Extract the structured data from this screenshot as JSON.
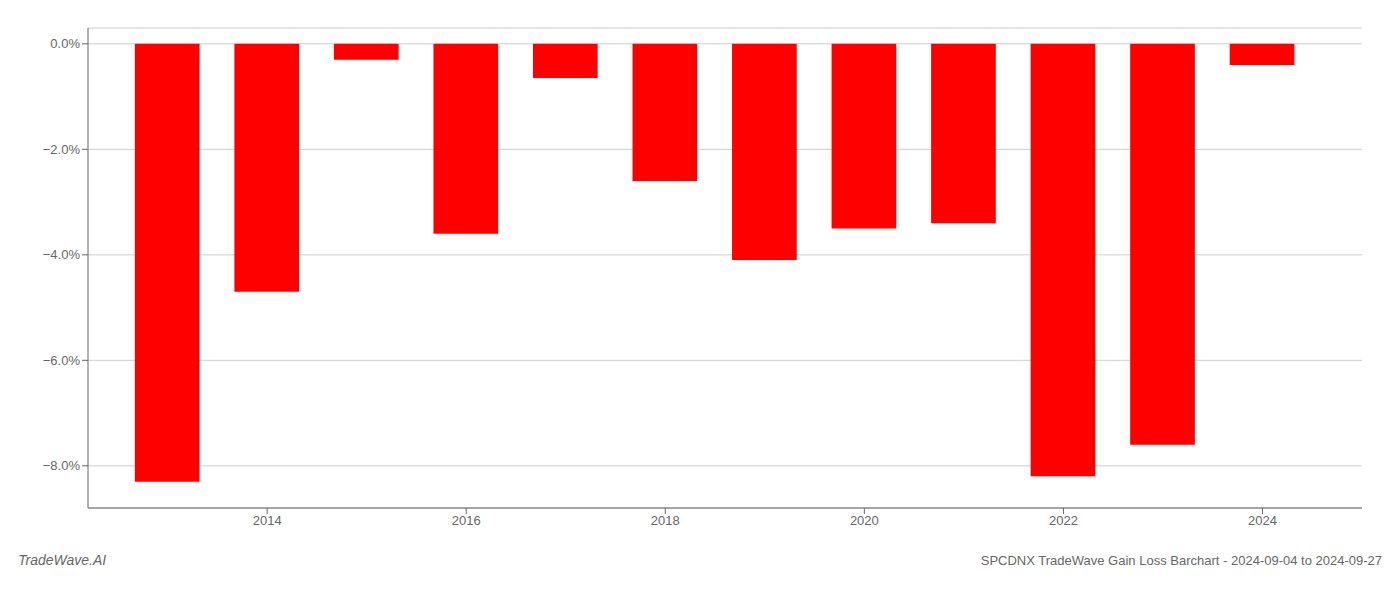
{
  "chart_data": {
    "type": "bar",
    "title": "SPCDNX TradeWave Gain Loss Barchart - 2024-09-04 to 2024-09-27",
    "annotations": [
      "TradeWave.AI"
    ],
    "x": [
      2013,
      2014,
      2015,
      2016,
      2017,
      2018,
      2019,
      2020,
      2021,
      2022,
      2023,
      2024
    ],
    "values": [
      -8.3,
      -4.7,
      -0.3,
      -3.6,
      -0.65,
      -2.6,
      -4.1,
      -3.5,
      -3.4,
      -8.2,
      -7.6,
      -0.4
    ],
    "color": "#ff0000",
    "xlim": [
      2012.2,
      2025.0
    ],
    "xticks": [
      2014,
      2016,
      2018,
      2020,
      2022,
      2024
    ],
    "ylim": [
      -8.8,
      0.3
    ],
    "yticks": [
      {
        "value": 0.0,
        "label": "0.0%"
      },
      {
        "value": -2.0,
        "label": "−2.0%"
      },
      {
        "value": -4.0,
        "label": "−4.0%"
      },
      {
        "value": -6.0,
        "label": "−6.0%"
      },
      {
        "value": -8.0,
        "label": "−8.0%"
      }
    ],
    "grid": true
  }
}
